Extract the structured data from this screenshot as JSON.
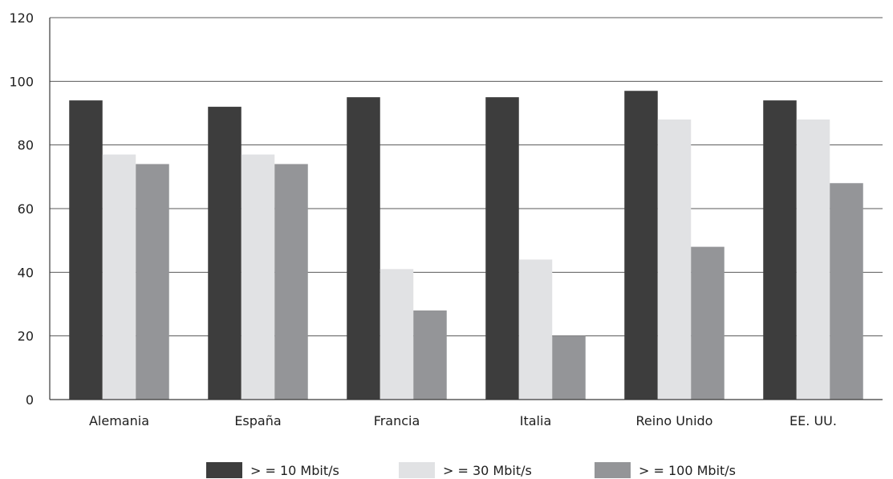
{
  "chart_data": {
    "type": "bar",
    "title": "",
    "xlabel": "",
    "ylabel": "",
    "ylim": [
      0,
      120
    ],
    "yticks": [
      0,
      20,
      40,
      60,
      80,
      100,
      120
    ],
    "grid": true,
    "legend_position": "bottom",
    "categories": [
      "Alemania",
      "España",
      "Francia",
      "Italia",
      "Reino Unido",
      "EE. UU."
    ],
    "series": [
      {
        "name": "> = 10 Mbit/s",
        "color": "#3d3d3d",
        "values": [
          94,
          92,
          95,
          95,
          97,
          94
        ]
      },
      {
        "name": "> = 30 Mbit/s",
        "color": "#e1e2e4",
        "values": [
          77,
          77,
          41,
          44,
          88,
          88
        ]
      },
      {
        "name": "> = 100 Mbit/s",
        "color": "#949598",
        "values": [
          74,
          74,
          28,
          20,
          48,
          68
        ]
      }
    ]
  }
}
